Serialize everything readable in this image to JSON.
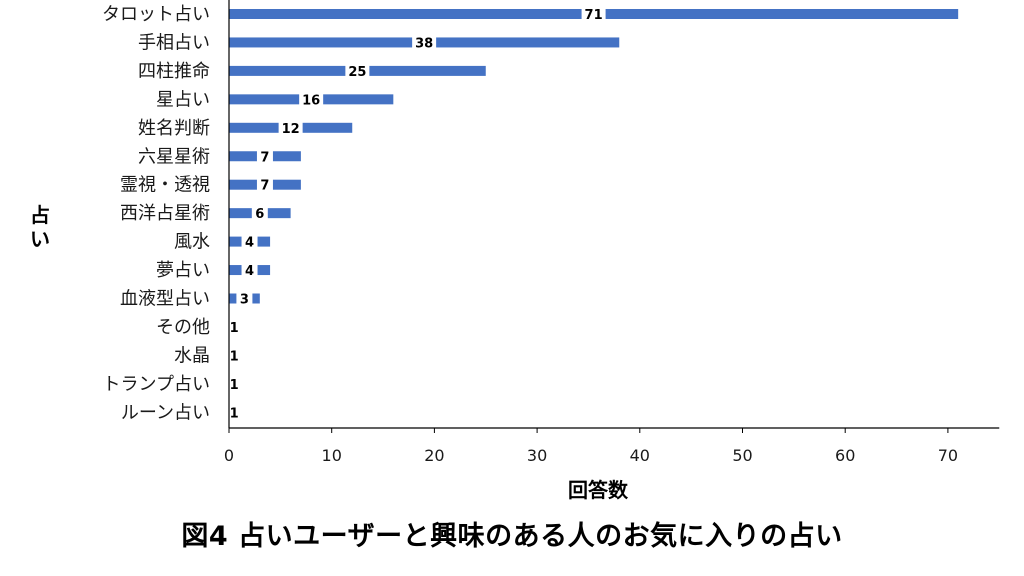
{
  "caption": "図4 占いユーザーと興味のある人のお気に入りの占い",
  "colors": {
    "bar": "#4472C4",
    "axis": "#000000",
    "text": "#1a1a1a"
  },
  "chart_data": {
    "type": "bar",
    "orientation": "horizontal",
    "title": "",
    "xlabel": "回答数",
    "ylabel": "占い",
    "xlim": [
      0,
      75
    ],
    "xticks": [
      0,
      10,
      20,
      30,
      40,
      50,
      60,
      70
    ],
    "grid": false,
    "legend": "none",
    "categories": [
      "タロット占い",
      "手相占い",
      "四柱推命",
      "星占い",
      "姓名判断",
      "六星星術",
      "霊視・透視",
      "西洋占星術",
      "風水",
      "夢占い",
      "血液型占い",
      "その他",
      "水晶",
      "トランプ占い",
      "ルーン占い"
    ],
    "values": [
      71,
      38,
      25,
      16,
      12,
      7,
      7,
      6,
      4,
      4,
      3,
      1,
      1,
      1,
      1
    ]
  }
}
